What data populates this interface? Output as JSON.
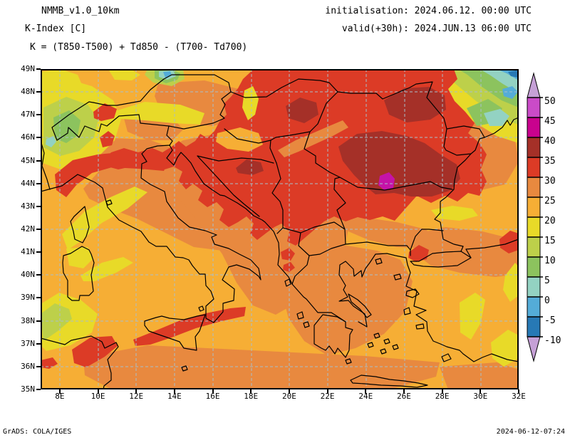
{
  "header": {
    "model": "NMMB_v1.0_10km",
    "variable": "K-Index [C]",
    "init_line": "initialisation: 2024.06.12. 00:00 UTC",
    "valid_line": "valid(+30h): 2024.JUN.13 06:00 UTC",
    "formula": "K = (T850-T500) + Td850 - (T700- Td700)"
  },
  "axes": {
    "lat_labels": [
      "49N",
      "48N",
      "47N",
      "46N",
      "45N",
      "44N",
      "43N",
      "42N",
      "41N",
      "40N",
      "39N",
      "38N",
      "37N",
      "36N",
      "35N"
    ],
    "lon_labels": [
      "8E",
      "10E",
      "12E",
      "14E",
      "16E",
      "18E",
      "20E",
      "22E",
      "24E",
      "26E",
      "28E",
      "30E",
      "32E"
    ]
  },
  "colorbar": {
    "labels": [
      "50",
      "45",
      "40",
      "35",
      "30",
      "25",
      "20",
      "15",
      "10",
      "5",
      "0",
      "-5",
      "-10"
    ],
    "segment_colors": [
      "#ca4bc8",
      "#c9028e",
      "#a53028",
      "#dc3b26",
      "#e8893f",
      "#f6ae35",
      "#e8da28",
      "#bdd04a",
      "#8cc35e",
      "#93d2c2",
      "#54acd8",
      "#2779b5"
    ],
    "arrow_color": "#c5a0d6"
  },
  "footer": {
    "left": "GrADS: COLA/IGES",
    "right": "2024-06-12-07:24"
  },
  "chart_data": {
    "type": "filled_contour_map",
    "title": "K-Index [C]",
    "model": "NMMB_v1.0_10km",
    "initialisation": "2024.06.12. 00:00 UTC",
    "valid": "2024.JUN.13 06:00 UTC (+30h)",
    "formula": "K = (T850-T500) + Td850 - (T700- Td700)",
    "unit": "C",
    "lon_ticks_deg_east": [
      8,
      10,
      12,
      14,
      16,
      18,
      20,
      22,
      24,
      26,
      28,
      30,
      32
    ],
    "lat_ticks_deg_north": [
      49,
      48,
      47,
      46,
      45,
      44,
      43,
      42,
      41,
      40,
      39,
      38,
      37,
      36,
      35
    ],
    "contour_levels": [
      -10,
      -5,
      0,
      5,
      10,
      15,
      20,
      25,
      30,
      35,
      40,
      45,
      50
    ],
    "level_colors_low_to_high": [
      "#2779b5",
      "#54acd8",
      "#93d2c2",
      "#8cc35e",
      "#bdd04a",
      "#e8da28",
      "#f6ae35",
      "#e8893f",
      "#dc3b26",
      "#a53028",
      "#c9028e",
      "#ca4bc8"
    ],
    "grid": "dashed 2-degree graticule",
    "notable_features": [
      "Broad K 30-40 (red) and 35-45 (dark red) maximum over the Pannonian basin, Serbia and Romania",
      "Local maximum 40-45 (magenta spot) near 25.5E 44N in southern Romania",
      "K 30-35 (red) bands over NW Italy, central Adriatic, Bosnia, Sicily and N Tunisia",
      "Low K (below 5, green/cyan/blue) over the NW Black Sea region in the top-right corner",
      "K 5-15 (green/yellow-green) over the Alps",
      "Background field mostly 20-30 (gold/orange) elsewhere"
    ]
  }
}
